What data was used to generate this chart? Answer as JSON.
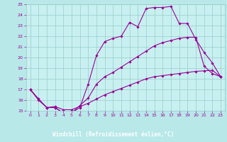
{
  "xlabel": "Windchill (Refroidissement éolien,°C)",
  "background_color": "#b8e8e8",
  "plot_bg_color": "#c8f0f0",
  "grid_color": "#99cccc",
  "line_color": "#990099",
  "bottom_bar_color": "#8866aa",
  "xlim": [
    -0.5,
    23.5
  ],
  "ylim": [
    15,
    25
  ],
  "xticks": [
    0,
    1,
    2,
    3,
    4,
    5,
    6,
    7,
    8,
    9,
    10,
    11,
    12,
    13,
    14,
    15,
    16,
    17,
    18,
    19,
    20,
    21,
    22,
    23
  ],
  "yticks": [
    15,
    16,
    17,
    18,
    19,
    20,
    21,
    22,
    23,
    24,
    25
  ],
  "line1_x": [
    0,
    1,
    2,
    3,
    4,
    5,
    6,
    7,
    8,
    9,
    10,
    11,
    12,
    13,
    14,
    15,
    16,
    17,
    18,
    19,
    20,
    21,
    22,
    23
  ],
  "line1_y": [
    17.0,
    16.1,
    15.3,
    15.3,
    14.8,
    14.8,
    15.3,
    17.5,
    20.2,
    21.5,
    21.8,
    22.0,
    23.3,
    22.9,
    24.6,
    24.7,
    24.7,
    24.8,
    23.2,
    23.2,
    21.7,
    20.5,
    19.5,
    18.2
  ],
  "line2_x": [
    0,
    1,
    2,
    3,
    4,
    5,
    6,
    7,
    8,
    9,
    10,
    11,
    12,
    13,
    14,
    15,
    16,
    17,
    18,
    19,
    20,
    21,
    22,
    23
  ],
  "line2_y": [
    17.0,
    16.1,
    15.3,
    15.3,
    14.8,
    14.8,
    15.5,
    16.2,
    17.5,
    18.2,
    18.6,
    19.1,
    19.6,
    20.1,
    20.6,
    21.1,
    21.4,
    21.6,
    21.8,
    21.9,
    21.9,
    19.2,
    18.5,
    18.2
  ],
  "line3_x": [
    0,
    1,
    2,
    3,
    4,
    5,
    6,
    7,
    8,
    9,
    10,
    11,
    12,
    13,
    14,
    15,
    16,
    17,
    18,
    19,
    20,
    21,
    22,
    23
  ],
  "line3_y": [
    17.0,
    16.0,
    15.3,
    15.4,
    15.1,
    15.1,
    15.4,
    15.7,
    16.1,
    16.5,
    16.8,
    17.1,
    17.4,
    17.7,
    18.0,
    18.2,
    18.3,
    18.4,
    18.5,
    18.6,
    18.7,
    18.75,
    18.8,
    18.2
  ]
}
